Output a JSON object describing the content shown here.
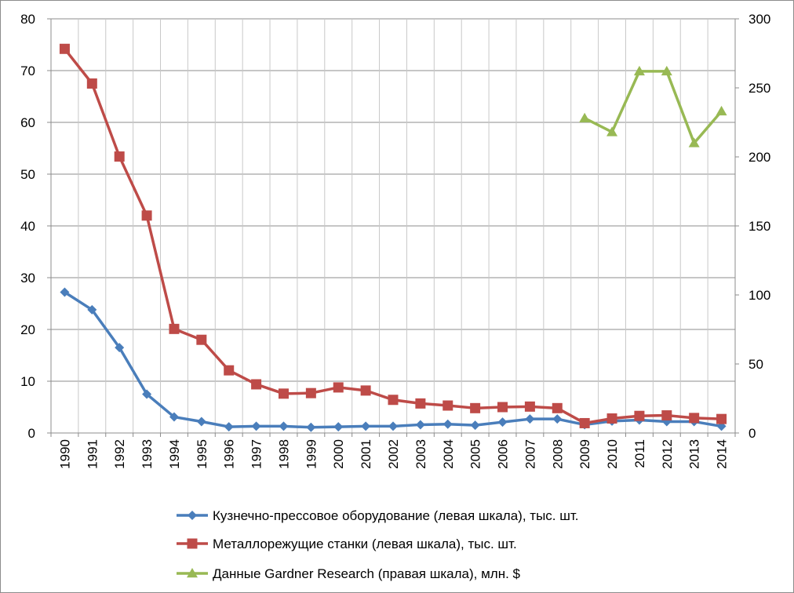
{
  "chart_data": {
    "type": "line",
    "title": "",
    "categories": [
      "1990",
      "1991",
      "1992",
      "1993",
      "1994",
      "1995",
      "1996",
      "1997",
      "1998",
      "1999",
      "2000",
      "2001",
      "2002",
      "2003",
      "2004",
      "2005",
      "2006",
      "2007",
      "2008",
      "2009",
      "2010",
      "2011",
      "2012",
      "2013",
      "2014"
    ],
    "y_left": {
      "ylim": [
        0,
        80
      ],
      "ticks": [
        "0",
        "10",
        "20",
        "30",
        "40",
        "50",
        "60",
        "70",
        "80"
      ]
    },
    "y_right": {
      "ylim": [
        0,
        300
      ],
      "ticks": [
        "0",
        "50",
        "100",
        "150",
        "200",
        "250",
        "300"
      ]
    },
    "grid": true,
    "legend_position": "bottom",
    "series": [
      {
        "name": "Кузнечно-прессовое оборудование (левая шкала), тыс. шт.",
        "axis": "left",
        "marker": "diamond",
        "color": "#4a7ebb",
        "values": [
          27.2,
          23.8,
          16.5,
          7.5,
          3.1,
          2.2,
          1.2,
          1.3,
          1.3,
          1.1,
          1.2,
          1.3,
          1.3,
          1.6,
          1.7,
          1.5,
          2.1,
          2.7,
          2.7,
          1.6,
          2.3,
          2.5,
          2.2,
          2.2,
          1.3
        ]
      },
      {
        "name": "Металлорежущие станки (левая шкала), тыс. шт.",
        "axis": "left",
        "marker": "square",
        "color": "#be4b48",
        "values": [
          74.2,
          67.5,
          53.4,
          42.0,
          20.1,
          18.0,
          12.1,
          9.4,
          7.6,
          7.7,
          8.8,
          8.2,
          6.4,
          5.7,
          5.3,
          4.8,
          5.0,
          5.1,
          4.8,
          1.9,
          2.8,
          3.3,
          3.4,
          2.9,
          2.7
        ]
      },
      {
        "name": "Данные Gardner Research (правая шкала), млн. $",
        "axis": "right",
        "marker": "triangle",
        "color": "#98b954",
        "values": [
          null,
          null,
          null,
          null,
          null,
          null,
          null,
          null,
          null,
          null,
          null,
          null,
          null,
          null,
          null,
          null,
          null,
          null,
          null,
          228,
          218,
          262,
          262,
          210,
          233
        ]
      }
    ]
  }
}
